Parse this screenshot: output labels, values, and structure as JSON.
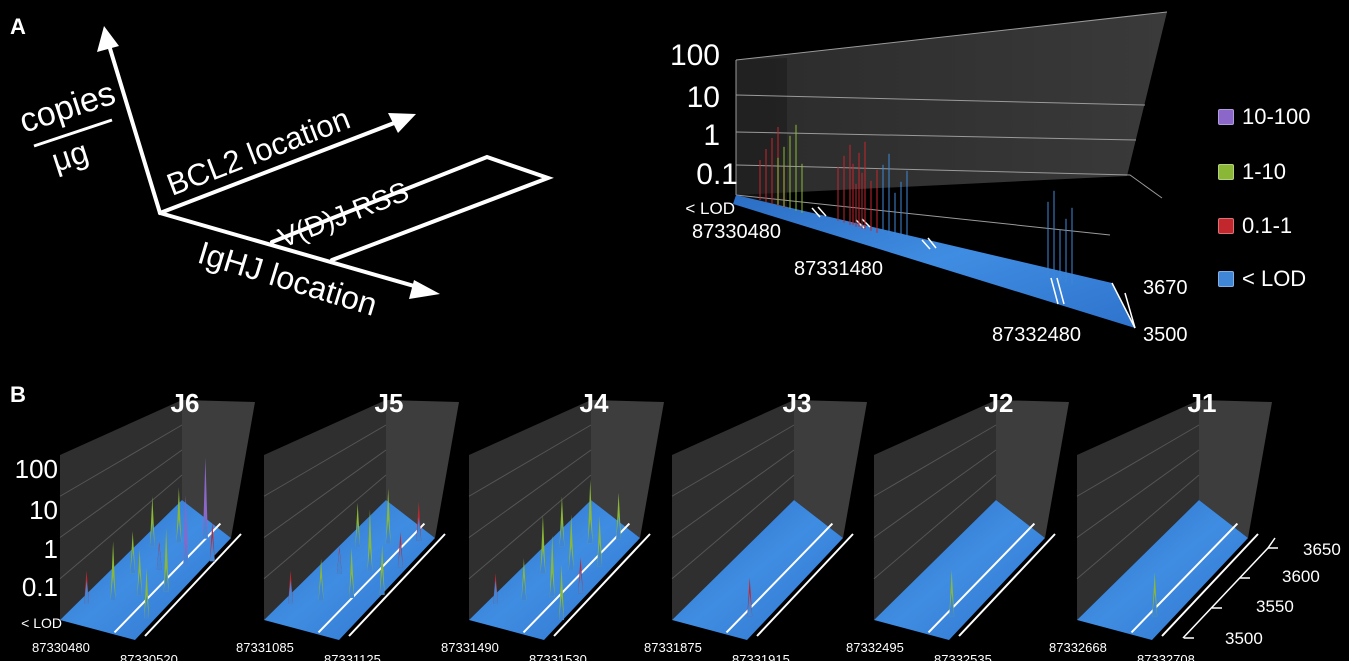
{
  "panels": {
    "a": "A",
    "b": "B"
  },
  "schematic": {
    "y_axis_top": "copies",
    "y_axis_bottom": "μg",
    "x_axis": "BCL2 location",
    "z_axis": "IgHJ location",
    "rss_box": "V(D)J RSS"
  },
  "legend": [
    {
      "label": "10-100",
      "color": "#8a67c9"
    },
    {
      "label": "1-10",
      "color": "#8ab836"
    },
    {
      "label": "0.1-1",
      "color": "#c2272e"
    },
    {
      "label": "< LOD",
      "color": "#3f86d6"
    }
  ],
  "colors": {
    "floor": "#3a86dc",
    "wall": "#3b3b3b",
    "background": "#000000"
  },
  "chart_data": [
    {
      "type": "bar",
      "panel": "A",
      "z_scale": "log",
      "z_ticks": [
        "100",
        "10",
        "1",
        "0.1",
        "< LOD"
      ],
      "bcl2_ticks": [
        "87330480",
        "87331480",
        "87332480"
      ],
      "ighj_ticks": [
        "3670",
        "3500"
      ],
      "segments": [
        {
          "bcl2": 87330480,
          "value_class": "0.1-1"
        },
        {
          "bcl2": 87330600,
          "value_class": "1-10"
        },
        {
          "bcl2": 87331000,
          "value_class": "0.1-1"
        },
        {
          "bcl2": 87331100,
          "value_class": "0.1-1"
        },
        {
          "bcl2": 87331300,
          "value_class": "< LOD"
        },
        {
          "bcl2": 87332400,
          "value_class": "< LOD"
        }
      ]
    },
    {
      "type": "bar",
      "title": "J6",
      "z_scale": "log",
      "z_ticks": [
        "100",
        "10",
        "1",
        "0.1",
        "< LOD"
      ],
      "x_ticks": [
        "87330480",
        "87330520"
      ],
      "peaks": [
        0.5,
        2,
        1,
        4,
        3,
        0.3,
        1.5,
        25,
        10,
        6,
        2,
        0.8
      ]
    },
    {
      "type": "bar",
      "title": "J5",
      "z_scale": "log",
      "x_ticks": [
        "87331085",
        "87331125"
      ],
      "peaks": [
        0.5,
        1.2,
        0.3,
        1,
        3,
        5,
        2,
        0.8,
        0.6,
        2
      ]
    },
    {
      "type": "bar",
      "title": "J4",
      "z_scale": "log",
      "x_ticks": [
        "87331490",
        "87331530"
      ],
      "peaks": [
        0.4,
        2,
        4,
        1,
        6,
        3,
        5,
        1.5,
        2,
        0.6,
        3
      ]
    },
    {
      "type": "bar",
      "title": "J3",
      "z_scale": "log",
      "x_ticks": [
        "87331875",
        "87331915"
      ],
      "peaks": [
        0.8
      ]
    },
    {
      "type": "bar",
      "title": "J2",
      "z_scale": "log",
      "x_ticks": [
        "87332495",
        "87332535"
      ],
      "peaks": [
        1.5
      ]
    },
    {
      "type": "bar",
      "title": "J1",
      "z_scale": "log",
      "x_ticks": [
        "87332668",
        "87332708"
      ],
      "y_ticks": [
        "3650",
        "3600",
        "3550",
        "3500"
      ],
      "peaks": [
        1.2
      ]
    }
  ]
}
